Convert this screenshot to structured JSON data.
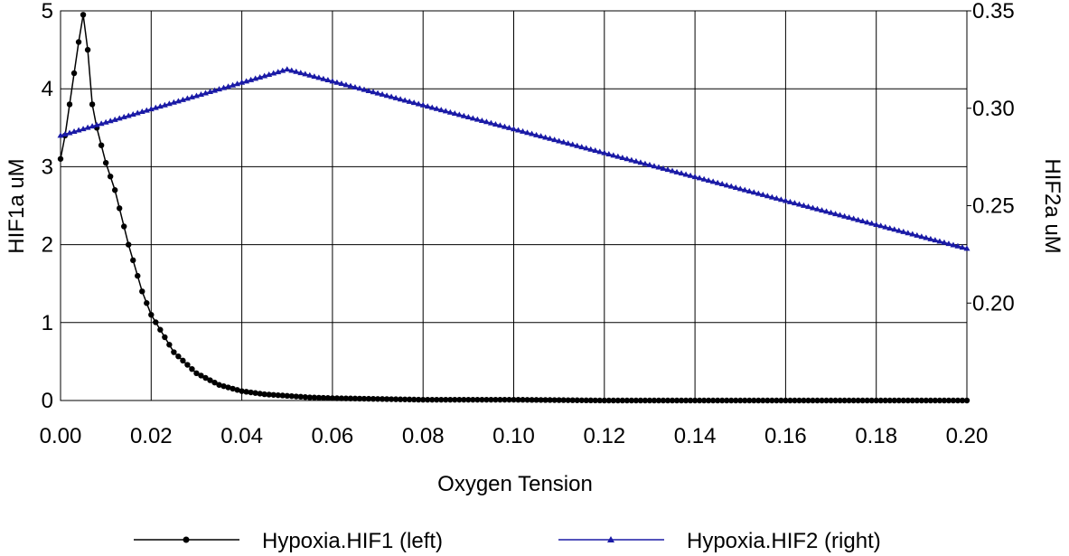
{
  "chart_data": {
    "type": "line",
    "xlabel": "Oxygen Tension",
    "ylabel_left": "HIF1a uM",
    "ylabel_right": "HIF2a uM",
    "xlim": [
      0.0,
      0.2
    ],
    "ylim_left": [
      0,
      5
    ],
    "ylim_right": [
      0.15,
      0.35
    ],
    "x_ticks": [
      "0.00",
      "0.02",
      "0.04",
      "0.06",
      "0.08",
      "0.10",
      "0.12",
      "0.14",
      "0.16",
      "0.18",
      "0.20"
    ],
    "y_ticks_left": [
      "0",
      "1",
      "2",
      "3",
      "4",
      "5"
    ],
    "y_ticks_right": [
      "0.20",
      "0.25",
      "0.30",
      "0.35"
    ],
    "grid": true,
    "legend_position": "bottom",
    "series": [
      {
        "name": "Hypoxia.HIF1 (left)",
        "axis": "left",
        "color": "#000000",
        "marker": "circle",
        "x": [
          0.0,
          0.001,
          0.002,
          0.003,
          0.004,
          0.005,
          0.006,
          0.007,
          0.008,
          0.01,
          0.012,
          0.015,
          0.018,
          0.02,
          0.025,
          0.03,
          0.035,
          0.04,
          0.045,
          0.05,
          0.055,
          0.06,
          0.07,
          0.08,
          0.1,
          0.12,
          0.14,
          0.16,
          0.18,
          0.2
        ],
        "y": [
          3.1,
          3.4,
          3.8,
          4.2,
          4.6,
          4.95,
          4.5,
          3.8,
          3.5,
          3.05,
          2.7,
          2.0,
          1.4,
          1.1,
          0.62,
          0.35,
          0.2,
          0.12,
          0.08,
          0.06,
          0.04,
          0.03,
          0.02,
          0.01,
          0.01,
          0.0,
          0.0,
          0.0,
          0.0,
          0.0
        ]
      },
      {
        "name": "Hypoxia.HIF2 (right)",
        "axis": "right",
        "color": "#1a1aa6",
        "marker": "triangle",
        "x": [
          0.0,
          0.05,
          0.2
        ],
        "y": [
          0.286,
          0.32,
          0.228
        ]
      }
    ]
  },
  "colors": {
    "hif1": "#000000",
    "hif2": "#1a1aa6",
    "grid": "#000000"
  }
}
